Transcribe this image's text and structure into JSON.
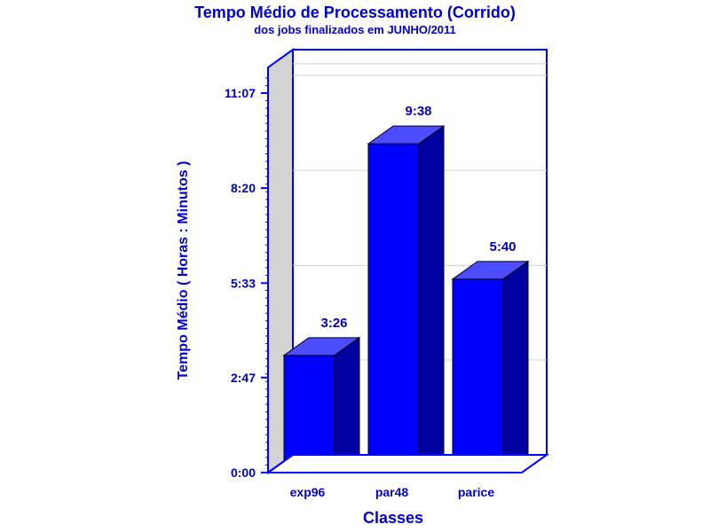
{
  "chart_data": {
    "type": "bar",
    "title": "Tempo Médio de Processamento (Corrido)",
    "subtitle": "dos jobs finalizados em JUNHO/2011",
    "xlabel": "Classes",
    "ylabel": "Tempo Médio ( Horas : Minutos )",
    "categories": [
      "exp96",
      "par48",
      "parice"
    ],
    "values_minutes": [
      206,
      578,
      340
    ],
    "value_labels": [
      "3:26",
      "9:38",
      "5:40"
    ],
    "y_ticks_minutes": [
      0,
      167,
      333,
      500,
      667
    ],
    "y_tick_labels": [
      "0:00",
      "2:47",
      "5:33",
      "8:20",
      "11:07"
    ],
    "ylim_minutes": [
      0,
      700
    ],
    "grid": true,
    "colors": {
      "text": "#0000cc",
      "bar_front": "#0000ff",
      "bar_top": "#4c4cff",
      "bar_side": "#0000a0",
      "frame": "#0000ff",
      "wall": "#d4d4d4",
      "grid": "#d0d0d0"
    }
  }
}
